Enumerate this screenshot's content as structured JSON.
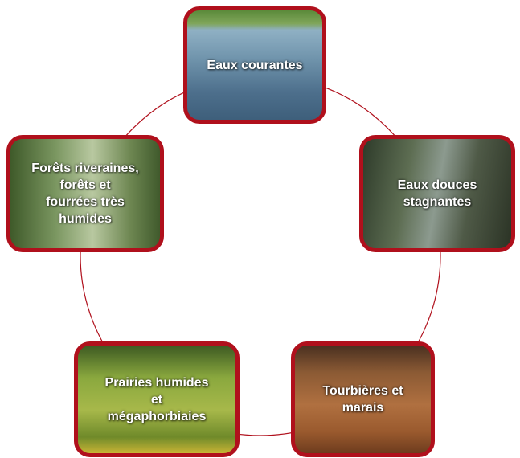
{
  "nodes": [
    {
      "lines": [
        "Eaux courantes"
      ]
    },
    {
      "lines": [
        "Eaux douces",
        "stagnantes"
      ]
    },
    {
      "lines": [
        "Tourbières et",
        "marais"
      ]
    },
    {
      "lines": [
        "Prairies humides",
        "et",
        "mégaphorbiaies"
      ]
    },
    {
      "lines": [
        "Forêts riveraines,",
        "forêts et",
        "fourrées très",
        "humides"
      ]
    }
  ]
}
